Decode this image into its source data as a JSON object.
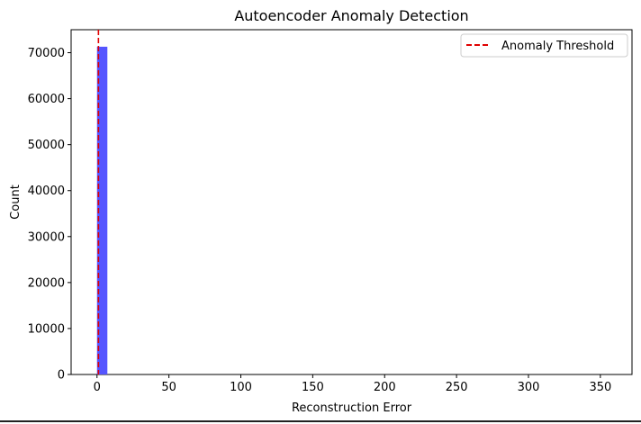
{
  "chart_data": {
    "type": "bar",
    "title": "Autoencoder Anomaly Detection",
    "xlabel": "Reconstruction Error",
    "ylabel": "Count",
    "xlim": [
      -18,
      372
    ],
    "ylim": [
      0,
      75000
    ],
    "xticks": [
      0,
      50,
      100,
      150,
      200,
      250,
      300,
      350
    ],
    "yticks": [
      0,
      10000,
      20000,
      30000,
      40000,
      50000,
      60000,
      70000
    ],
    "bins": [
      {
        "x0": 0,
        "x1": 7.2,
        "value": 71300
      }
    ],
    "bar_color": "#5555ff",
    "threshold": {
      "name": "Anomaly Threshold",
      "x": 1,
      "color": "#e00000",
      "style": "dashed"
    },
    "legend_position": "top-right",
    "grid": false
  }
}
